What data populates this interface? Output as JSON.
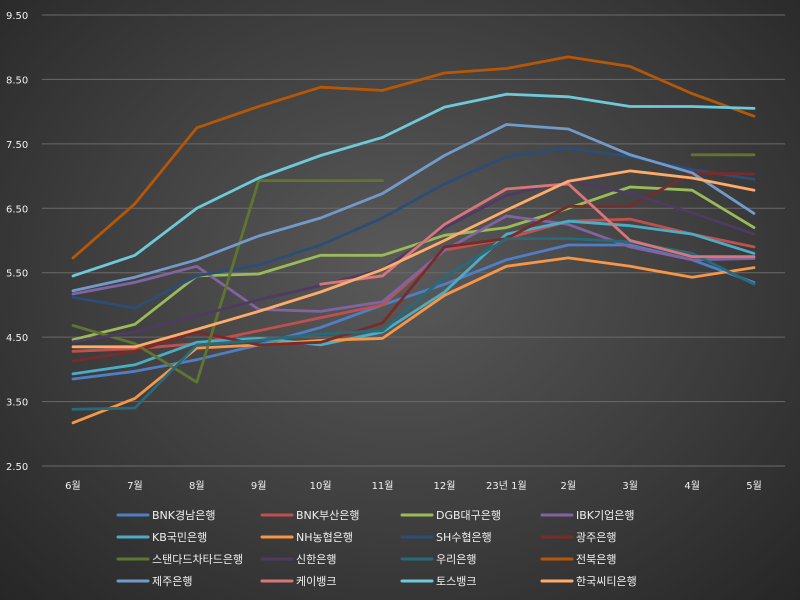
{
  "chart_data": {
    "type": "line",
    "title": "",
    "xlabel": "",
    "ylabel": "",
    "categories": [
      "6월",
      "7월",
      "8월",
      "9월",
      "10월",
      "11월",
      "12월",
      "23년 1월",
      "2월",
      "3월",
      "4월",
      "5월"
    ],
    "y_ticks": [
      "2.50",
      "3.50",
      "4.50",
      "5.50",
      "6.50",
      "7.50",
      "8.50",
      "9.50"
    ],
    "ylim": [
      2.5,
      9.5
    ],
    "grid": true,
    "legend_position": "bottom",
    "series": [
      {
        "name": "BNK경남은행",
        "color": "#4f7ec4",
        "values": [
          3.85,
          3.97,
          4.15,
          4.38,
          4.65,
          5.0,
          5.32,
          5.7,
          5.93,
          5.93,
          5.7,
          5.35
        ]
      },
      {
        "name": "BNK부산은행",
        "color": "#c0504d",
        "values": [
          4.28,
          4.32,
          4.4,
          4.6,
          4.8,
          5.0,
          5.85,
          6.03,
          6.3,
          6.33,
          6.1,
          5.9
        ]
      },
      {
        "name": "DGB대구은행",
        "color": "#9bbb59",
        "values": [
          4.46,
          4.7,
          5.45,
          5.48,
          5.77,
          5.77,
          6.08,
          6.2,
          6.5,
          6.83,
          6.78,
          6.2
        ]
      },
      {
        "name": "IBK기업은행",
        "color": "#8064a2",
        "values": [
          5.17,
          5.35,
          5.6,
          4.93,
          4.9,
          5.05,
          5.85,
          6.38,
          6.25,
          5.9,
          5.7,
          5.72
        ]
      },
      {
        "name": "KB국민은행",
        "color": "#4bacc6",
        "values": [
          3.93,
          4.07,
          4.42,
          4.48,
          4.38,
          4.58,
          5.2,
          6.1,
          6.3,
          6.23,
          6.1,
          5.8
        ]
      },
      {
        "name": "NH농협은행",
        "color": "#f79646",
        "values": [
          3.17,
          3.55,
          4.33,
          4.38,
          4.45,
          4.48,
          5.15,
          5.6,
          5.73,
          5.6,
          5.43,
          5.58
        ]
      },
      {
        "name": "SH수협은행",
        "color": "#2c4d75",
        "values": [
          5.12,
          4.95,
          5.45,
          5.62,
          5.93,
          6.35,
          6.88,
          7.3,
          7.43,
          7.3,
          7.1,
          6.95
        ]
      },
      {
        "name": "광주은행",
        "color": "#772c2a",
        "values": [
          4.13,
          4.28,
          4.58,
          4.38,
          4.42,
          4.72,
          5.9,
          6.03,
          6.53,
          6.53,
          7.05,
          7.03
        ]
      },
      {
        "name": "스탠다드차타드은행",
        "color": "#5f7530",
        "values": [
          4.68,
          4.4,
          3.8,
          6.93,
          6.93,
          6.93,
          null,
          null,
          null,
          null,
          7.33,
          7.33
        ]
      },
      {
        "name": "신한은행",
        "color": "#4d3b62",
        "values": [
          4.43,
          4.58,
          4.83,
          5.08,
          5.3,
          5.55,
          6.2,
          6.7,
          6.93,
          6.73,
          6.43,
          6.1
        ]
      },
      {
        "name": "우리은행",
        "color": "#276a7c",
        "values": [
          3.38,
          3.4,
          4.38,
          4.45,
          4.55,
          4.6,
          5.43,
          6.03,
          6.03,
          5.98,
          5.8,
          5.32
        ]
      },
      {
        "name": "전북은행",
        "color": "#b65708",
        "values": [
          5.73,
          6.57,
          7.75,
          8.08,
          8.38,
          8.33,
          8.6,
          8.67,
          8.85,
          8.7,
          8.28,
          7.93
        ]
      },
      {
        "name": "제주은행",
        "color": "#729aca",
        "values": [
          5.22,
          5.43,
          5.7,
          6.07,
          6.35,
          6.73,
          7.32,
          7.8,
          7.73,
          7.33,
          7.05,
          6.42
        ]
      },
      {
        "name": "케이뱅크",
        "color": "#d7777a",
        "values": [
          null,
          null,
          null,
          null,
          5.32,
          5.45,
          6.25,
          6.8,
          6.88,
          6.0,
          5.75,
          5.75
        ]
      },
      {
        "name": "토스뱅크",
        "color": "#6ec9d8",
        "values": [
          5.45,
          5.77,
          6.5,
          6.97,
          7.32,
          7.6,
          8.07,
          8.27,
          8.23,
          8.08,
          8.08,
          8.05
        ]
      },
      {
        "name": "한국씨티은행",
        "color": "#ffac6b",
        "values": [
          4.35,
          4.35,
          4.62,
          4.9,
          5.2,
          5.55,
          6.0,
          6.47,
          6.92,
          7.08,
          6.97,
          6.78
        ]
      }
    ]
  }
}
